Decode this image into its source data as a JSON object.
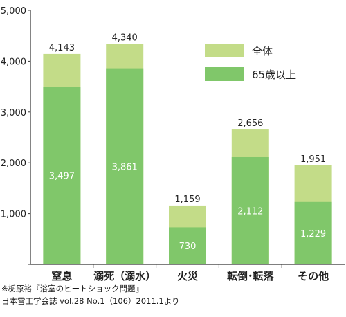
{
  "chart_data": {
    "type": "bar",
    "stacked_overlay": true,
    "categories": [
      "窒息",
      "溺死（溺水）",
      "火災",
      "転倒･転落",
      "その他"
    ],
    "series": [
      {
        "name": "全体",
        "values": [
          4143,
          4340,
          1159,
          2656,
          1951
        ],
        "color": "#c3dc88",
        "labels": [
          "4,143",
          "4,340",
          "1,159",
          "2,656",
          "1,951"
        ]
      },
      {
        "name": "65歳以上",
        "values": [
          3497,
          3861,
          730,
          2112,
          1229
        ],
        "color": "#80c76a",
        "labels": [
          "3,497",
          "3,861",
          "730",
          "2,112",
          "1,229"
        ]
      }
    ],
    "yticks": [
      0,
      1000,
      2000,
      3000,
      4000,
      5000
    ],
    "ytick_labels": [
      "",
      "1,000",
      "2,000",
      "3,000",
      "4,000",
      "5,000"
    ],
    "ylim": [
      0,
      5000
    ],
    "grid": false,
    "legend_position": "top-right"
  },
  "source_note": {
    "line1": "※栃原裕『浴室のヒートショック問題』",
    "line2": "日本雪工学会誌 vol.28 No.1（106）2011.1より"
  }
}
